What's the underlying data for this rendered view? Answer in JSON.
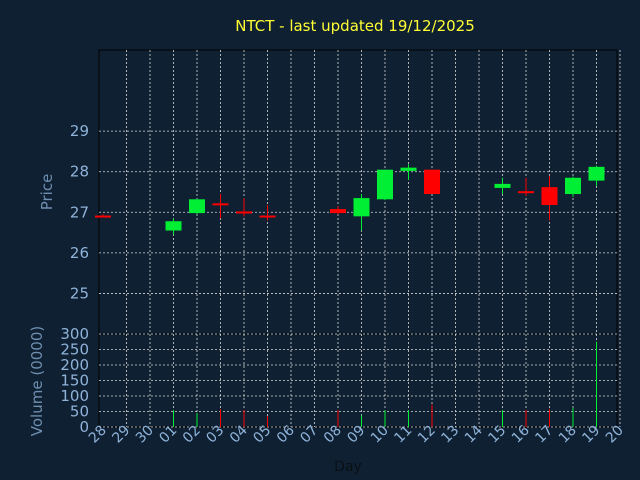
{
  "chart_data": {
    "type": "candlestick",
    "title": "NTCT - last updated 19/12/2025",
    "xlabel": "Day",
    "price_panel": {
      "ylabel": "Price",
      "ylim": [
        24,
        31
      ],
      "yticks": [
        25,
        26,
        27,
        28,
        29
      ]
    },
    "volume_panel": {
      "ylabel": "Volume (0000)",
      "ylim": [
        0,
        300
      ],
      "yticks": [
        0,
        50,
        100,
        150,
        200,
        250,
        300
      ]
    },
    "days": [
      "28",
      "29",
      "30",
      "01",
      "02",
      "03",
      "04",
      "05",
      "06",
      "07",
      "08",
      "09",
      "10",
      "11",
      "12",
      "13",
      "14",
      "15",
      "16",
      "17",
      "18",
      "19",
      "20"
    ],
    "candles": [
      {
        "day": "28",
        "open": 26.92,
        "high": 26.95,
        "low": 26.88,
        "close": 26.9,
        "volume": 0
      },
      {
        "day": "01",
        "open": 26.55,
        "high": 26.85,
        "low": 26.45,
        "close": 26.78,
        "volume": 55
      },
      {
        "day": "02",
        "open": 26.98,
        "high": 27.32,
        "low": 26.95,
        "close": 27.32,
        "volume": 45
      },
      {
        "day": "03",
        "open": 27.22,
        "high": 27.45,
        "low": 26.85,
        "close": 27.2,
        "volume": 58
      },
      {
        "day": "04",
        "open": 27.02,
        "high": 27.35,
        "low": 26.9,
        "close": 26.98,
        "volume": 55
      },
      {
        "day": "05",
        "open": 26.92,
        "high": 27.18,
        "low": 26.8,
        "close": 26.88,
        "volume": 35
      },
      {
        "day": "08",
        "open": 27.08,
        "high": 27.15,
        "low": 26.95,
        "close": 26.98,
        "volume": 55
      },
      {
        "day": "09",
        "open": 26.9,
        "high": 27.45,
        "low": 26.55,
        "close": 27.35,
        "volume": 38
      },
      {
        "day": "10",
        "open": 27.32,
        "high": 28.05,
        "low": 27.3,
        "close": 28.05,
        "volume": 55
      },
      {
        "day": "11",
        "open": 28.02,
        "high": 28.18,
        "low": 27.8,
        "close": 28.1,
        "volume": 55
      },
      {
        "day": "12",
        "open": 28.05,
        "high": 28.05,
        "low": 27.45,
        "close": 27.45,
        "volume": 72
      },
      {
        "day": "15",
        "open": 27.6,
        "high": 27.85,
        "low": 27.45,
        "close": 27.7,
        "volume": 55
      },
      {
        "day": "16",
        "open": 27.52,
        "high": 27.85,
        "low": 27.4,
        "close": 27.5,
        "volume": 55
      },
      {
        "day": "17",
        "open": 27.62,
        "high": 27.9,
        "low": 26.8,
        "close": 27.18,
        "volume": 58
      },
      {
        "day": "18",
        "open": 27.45,
        "high": 27.88,
        "low": 27.38,
        "close": 27.85,
        "volume": 62
      },
      {
        "day": "19",
        "open": 27.78,
        "high": 28.15,
        "low": 27.65,
        "close": 28.12,
        "volume": 275
      }
    ],
    "colors": {
      "background": "#0f2033",
      "up": "#00ee33",
      "down": "#ff0000",
      "grid": "#d8d8d8",
      "title": "#ffff33",
      "axis_label": "#6f8fb0",
      "tick_label": "#8fb3d9"
    },
    "grid": true
  }
}
